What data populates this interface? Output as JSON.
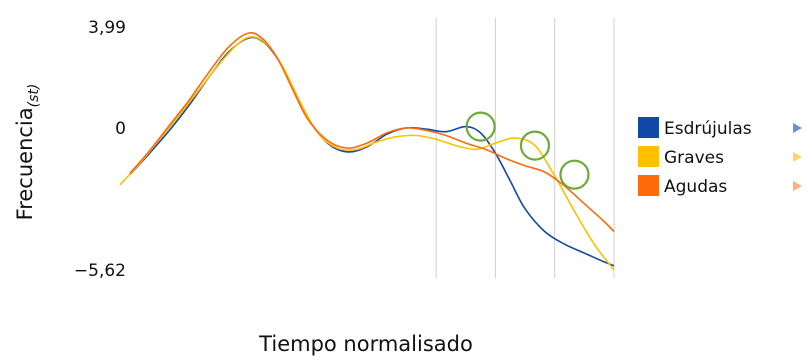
{
  "chart_data": {
    "type": "line",
    "title": "",
    "xlabel": "Tiempo normalisado",
    "ylabel": "Frecuencia",
    "ylabel_subscript": "(st)",
    "ylim": [
      -5.62,
      3.99
    ],
    "y_ticks": [
      {
        "value": 3.99,
        "label": "3,99"
      },
      {
        "value": 0,
        "label": "0"
      },
      {
        "value": -5.62,
        "label": "−5,62"
      }
    ],
    "xlim": [
      0,
      100
    ],
    "vertical_gridlines_x": [
      64,
      76,
      88,
      100
    ],
    "legend_position": "right",
    "series": [
      {
        "name": "Esdrújulas",
        "color": "#1049a8",
        "x": [
          2,
          6,
          10,
          14,
          18,
          22,
          26,
          29,
          32,
          35,
          38,
          42,
          46,
          50,
          54,
          58,
          62,
          66,
          70,
          73,
          76,
          79,
          82,
          86,
          90,
          94,
          98,
          100
        ],
        "y": [
          -1.85,
          -1.0,
          -0.1,
          0.9,
          2.0,
          3.0,
          3.55,
          3.4,
          2.7,
          1.6,
          0.4,
          -0.6,
          -0.95,
          -0.75,
          -0.25,
          0.0,
          -0.05,
          -0.15,
          0.05,
          -0.2,
          -1.0,
          -2.1,
          -3.2,
          -4.1,
          -4.6,
          -4.95,
          -5.3,
          -5.45
        ]
      },
      {
        "name": "Graves",
        "color": "#ffc000",
        "x": [
          0,
          4,
          8,
          12,
          16,
          20,
          24,
          27,
          30,
          33,
          36,
          40,
          44,
          48,
          52,
          56,
          60,
          64,
          68,
          72,
          76,
          80,
          84,
          88,
          92,
          96,
          100
        ],
        "y": [
          -2.25,
          -1.4,
          -0.45,
          0.5,
          1.5,
          2.5,
          3.35,
          3.6,
          3.25,
          2.4,
          1.2,
          -0.2,
          -0.8,
          -0.85,
          -0.55,
          -0.35,
          -0.3,
          -0.45,
          -0.7,
          -0.85,
          -0.6,
          -0.4,
          -0.7,
          -1.9,
          -3.3,
          -4.6,
          -5.62
        ]
      },
      {
        "name": "Agudas",
        "color": "#ff6a0a",
        "x": [
          2,
          6,
          10,
          14,
          18,
          22,
          26,
          29,
          32,
          35,
          38,
          42,
          46,
          50,
          54,
          58,
          62,
          66,
          70,
          74,
          78,
          82,
          86,
          90,
          94,
          98,
          100
        ],
        "y": [
          -1.8,
          -0.9,
          0.1,
          1.1,
          2.2,
          3.2,
          3.75,
          3.5,
          2.7,
          1.5,
          0.35,
          -0.5,
          -0.8,
          -0.6,
          -0.2,
          0.0,
          -0.1,
          -0.3,
          -0.6,
          -0.85,
          -1.2,
          -1.5,
          -1.75,
          -2.3,
          -3.0,
          -3.7,
          -4.1
        ]
      }
    ],
    "highlight_circles": [
      {
        "x": 73,
        "y": 0.05
      },
      {
        "x": 84,
        "y": -0.7
      },
      {
        "x": 92,
        "y": -1.85
      }
    ],
    "highlight_color": "#70a83c",
    "legend_arrow_color": "#a9c4e6",
    "legend_arrow_colors": [
      "#6d8fd0",
      "#ffd766",
      "#ffb07a"
    ]
  }
}
